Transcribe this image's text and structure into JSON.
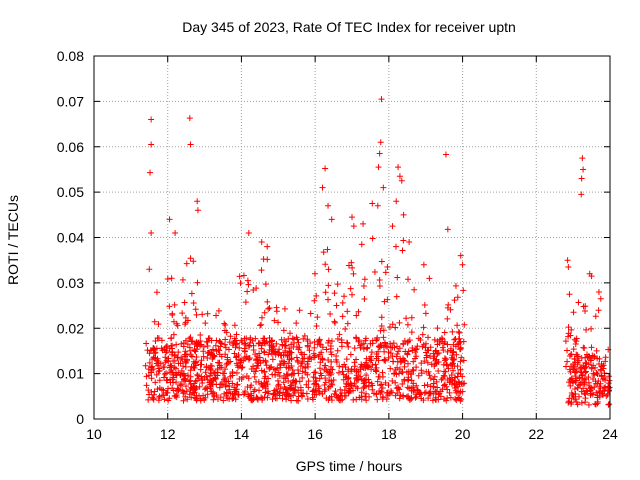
{
  "chart_data": {
    "type": "scatter",
    "title": "Day 345 of 2023, Rate Of TEC Index for receiver uptn",
    "xlabel": "GPS time / hours",
    "ylabel": "ROTI / TECUs",
    "xlim": [
      10,
      24
    ],
    "ylim": [
      0,
      0.08
    ],
    "x_ticks": [
      "10",
      "12",
      "14",
      "16",
      "18",
      "20",
      "22",
      "24"
    ],
    "y_ticks": [
      "0",
      "0.01",
      "0.02",
      "0.03",
      "0.04",
      "0.05",
      "0.06",
      "0.07",
      "0.08"
    ],
    "grid": true,
    "marker": "+",
    "color": "#ff0000",
    "series": [
      {
        "name": "",
        "segments": [
          {
            "x_start": 11.4,
            "x_end": 20.05,
            "base_range": [
              0.004,
              0.018
            ]
          },
          {
            "x_start": 22.8,
            "x_end": 24.0,
            "base_range": [
              0.003,
              0.014
            ]
          }
        ],
        "envelope": [
          {
            "x": 11.4,
            "y": 0.024
          },
          {
            "x": 11.6,
            "y": 0.03
          },
          {
            "x": 11.9,
            "y": 0.026
          },
          {
            "x": 12.1,
            "y": 0.034
          },
          {
            "x": 12.5,
            "y": 0.037
          },
          {
            "x": 12.8,
            "y": 0.035
          },
          {
            "x": 13.2,
            "y": 0.026
          },
          {
            "x": 13.8,
            "y": 0.022
          },
          {
            "x": 14.1,
            "y": 0.032
          },
          {
            "x": 14.6,
            "y": 0.037
          },
          {
            "x": 15.0,
            "y": 0.03
          },
          {
            "x": 15.5,
            "y": 0.024
          },
          {
            "x": 16.0,
            "y": 0.034
          },
          {
            "x": 16.3,
            "y": 0.044
          },
          {
            "x": 16.6,
            "y": 0.03
          },
          {
            "x": 17.0,
            "y": 0.035
          },
          {
            "x": 17.5,
            "y": 0.04
          },
          {
            "x": 17.8,
            "y": 0.046
          },
          {
            "x": 18.2,
            "y": 0.04
          },
          {
            "x": 18.6,
            "y": 0.031
          },
          {
            "x": 19.0,
            "y": 0.026
          },
          {
            "x": 19.5,
            "y": 0.029
          },
          {
            "x": 20.0,
            "y": 0.032
          },
          {
            "x": 22.8,
            "y": 0.024
          },
          {
            "x": 23.2,
            "y": 0.026
          },
          {
            "x": 23.6,
            "y": 0.024
          },
          {
            "x": 24.0,
            "y": 0.016
          }
        ],
        "outliers": [
          {
            "x": 11.55,
            "y": 0.066
          },
          {
            "x": 11.55,
            "y": 0.0605
          },
          {
            "x": 11.52,
            "y": 0.0543
          },
          {
            "x": 11.55,
            "y": 0.041
          },
          {
            "x": 11.5,
            "y": 0.033
          },
          {
            "x": 12.6,
            "y": 0.0663
          },
          {
            "x": 12.62,
            "y": 0.0605
          },
          {
            "x": 12.8,
            "y": 0.048
          },
          {
            "x": 12.82,
            "y": 0.046
          },
          {
            "x": 12.05,
            "y": 0.044
          },
          {
            "x": 12.2,
            "y": 0.041
          },
          {
            "x": 14.2,
            "y": 0.041
          },
          {
            "x": 14.55,
            "y": 0.039
          },
          {
            "x": 14.7,
            "y": 0.038
          },
          {
            "x": 16.27,
            "y": 0.0552
          },
          {
            "x": 16.2,
            "y": 0.051
          },
          {
            "x": 16.35,
            "y": 0.047
          },
          {
            "x": 16.45,
            "y": 0.044
          },
          {
            "x": 17.0,
            "y": 0.0445
          },
          {
            "x": 17.05,
            "y": 0.0425
          },
          {
            "x": 17.3,
            "y": 0.043
          },
          {
            "x": 17.55,
            "y": 0.0475
          },
          {
            "x": 17.8,
            "y": 0.0705
          },
          {
            "x": 17.78,
            "y": 0.061
          },
          {
            "x": 17.75,
            "y": 0.0585
          },
          {
            "x": 17.72,
            "y": 0.0555
          },
          {
            "x": 17.85,
            "y": 0.051
          },
          {
            "x": 17.7,
            "y": 0.047
          },
          {
            "x": 18.25,
            "y": 0.0555
          },
          {
            "x": 18.3,
            "y": 0.0535
          },
          {
            "x": 18.35,
            "y": 0.0525
          },
          {
            "x": 18.2,
            "y": 0.048
          },
          {
            "x": 18.4,
            "y": 0.045
          },
          {
            "x": 18.1,
            "y": 0.0425
          },
          {
            "x": 18.55,
            "y": 0.039
          },
          {
            "x": 18.95,
            "y": 0.034
          },
          {
            "x": 19.1,
            "y": 0.031
          },
          {
            "x": 19.55,
            "y": 0.0583
          },
          {
            "x": 19.6,
            "y": 0.0418
          },
          {
            "x": 19.95,
            "y": 0.036
          },
          {
            "x": 20.0,
            "y": 0.034
          },
          {
            "x": 23.25,
            "y": 0.0575
          },
          {
            "x": 23.27,
            "y": 0.055
          },
          {
            "x": 23.23,
            "y": 0.053
          },
          {
            "x": 23.22,
            "y": 0.0495
          },
          {
            "x": 22.85,
            "y": 0.035
          },
          {
            "x": 22.87,
            "y": 0.0335
          },
          {
            "x": 22.9,
            "y": 0.0275
          },
          {
            "x": 23.45,
            "y": 0.032
          },
          {
            "x": 23.5,
            "y": 0.0315
          },
          {
            "x": 23.7,
            "y": 0.028
          },
          {
            "x": 23.75,
            "y": 0.0265
          }
        ]
      }
    ]
  }
}
